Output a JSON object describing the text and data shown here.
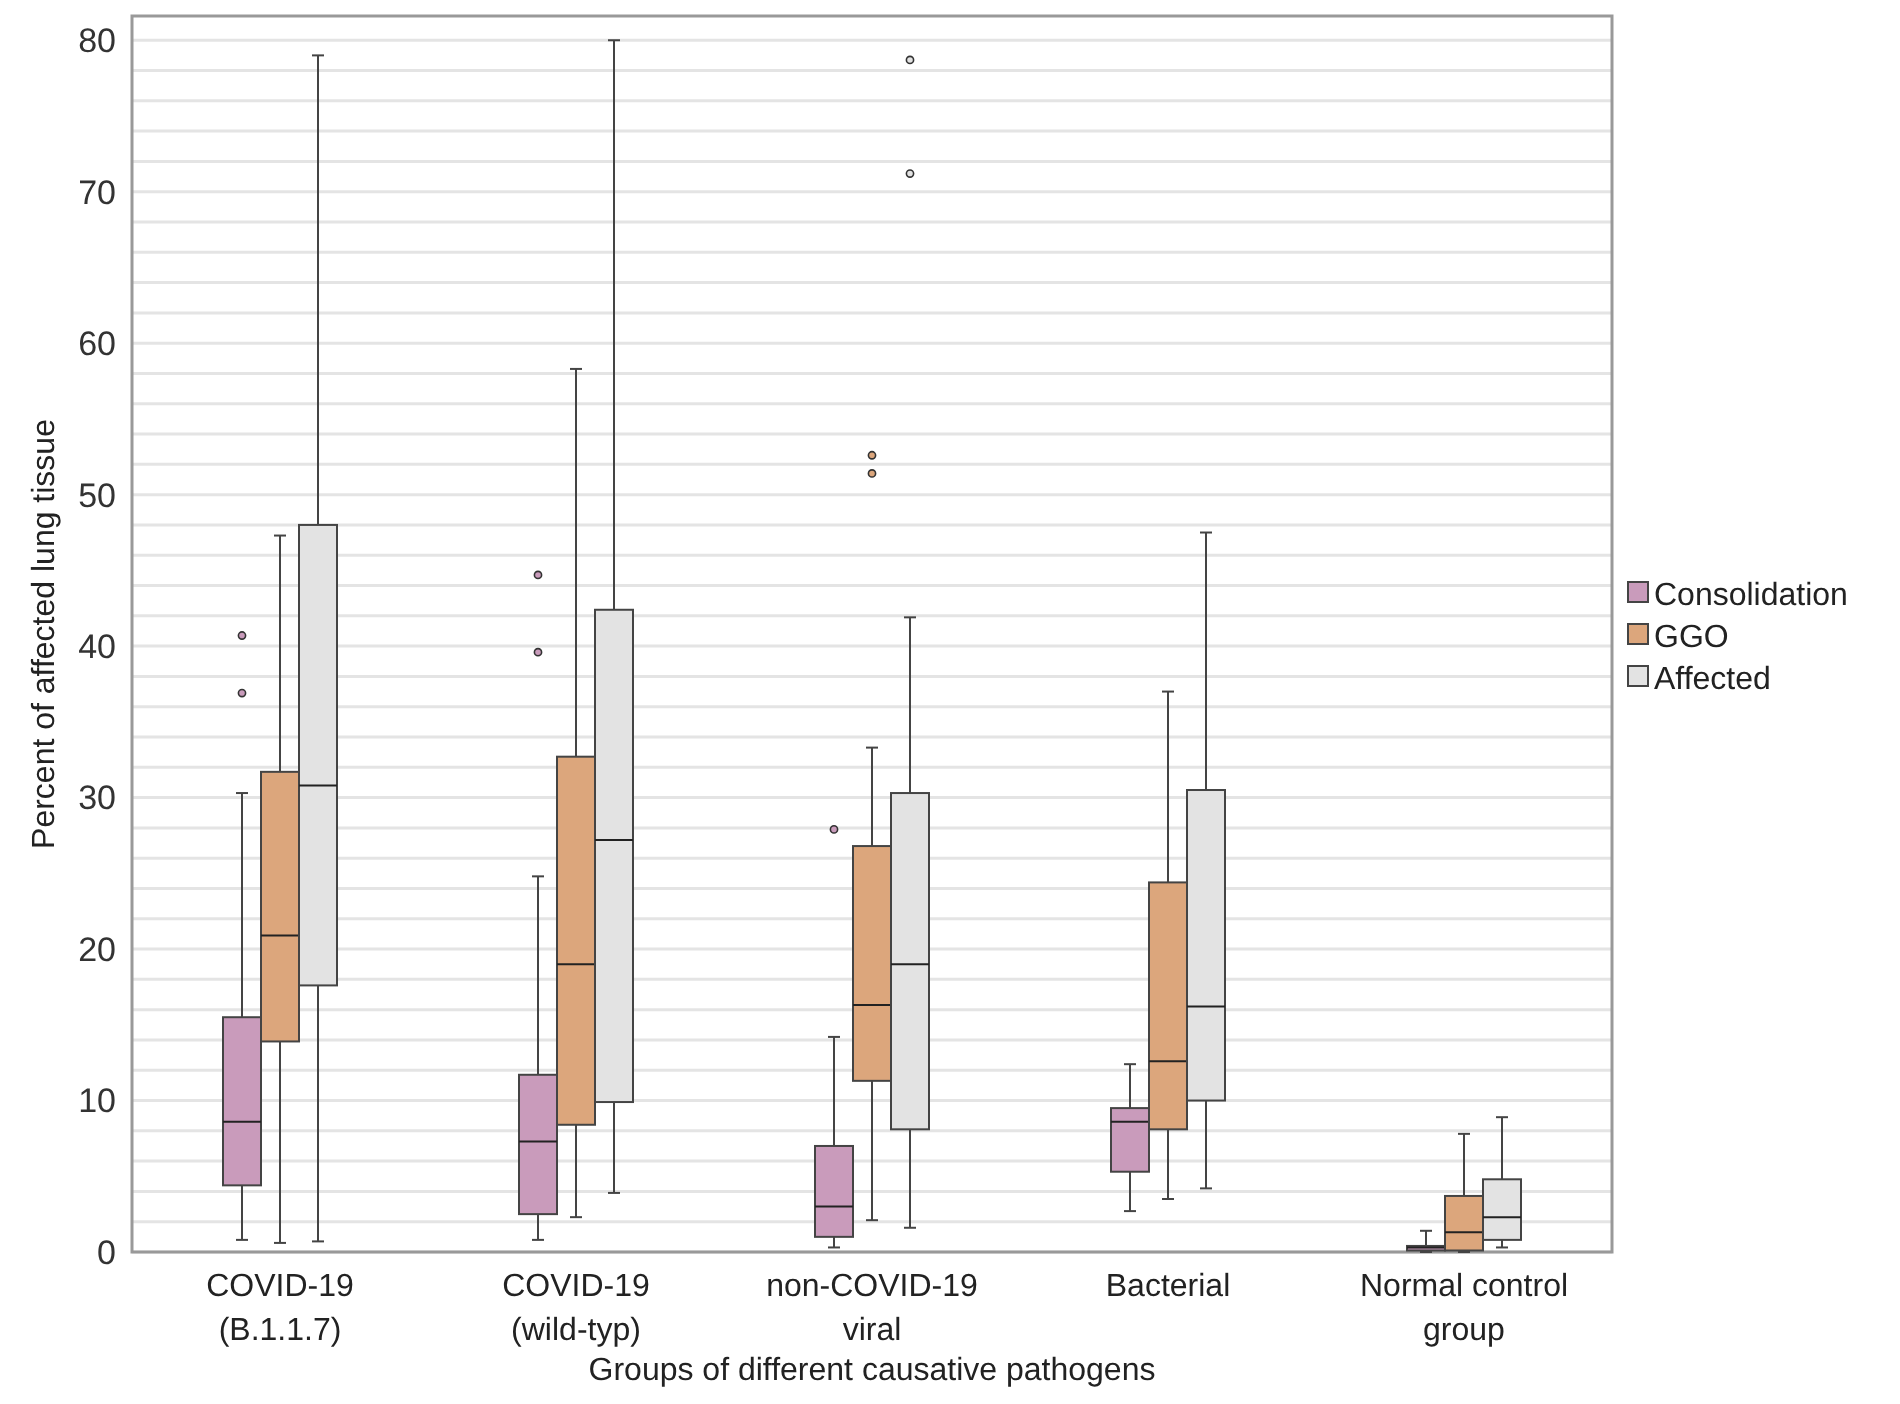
{
  "chart_data": {
    "type": "box",
    "xlabel": "Groups of different causative pathogens",
    "ylabel": "Percent of affected lung tissue",
    "categories": [
      "COVID-19\n(B.1.1.7)",
      "COVID-19\n(wild-typ)",
      "non-COVID-19\nviral",
      "Bacterial",
      "Normal control\ngroup"
    ],
    "ylim": [
      0,
      81.6
    ],
    "yticks": [
      0,
      {
        "value": 2,
        "label": null
      },
      {
        "value": 4,
        "label": null
      },
      {
        "value": 6,
        "label": null
      },
      {
        "value": 8,
        "label": null
      },
      10,
      {
        "value": 12,
        "label": null
      },
      {
        "value": 14,
        "label": null
      },
      {
        "value": 16,
        "label": null
      },
      {
        "value": 18,
        "label": null
      },
      20,
      {
        "value": 22,
        "label": null
      },
      {
        "value": 24,
        "label": null
      },
      {
        "value": 26,
        "label": null
      },
      {
        "value": 28,
        "label": null
      },
      30,
      {
        "value": 32,
        "label": null
      },
      {
        "value": 34,
        "label": null
      },
      {
        "value": 36,
        "label": null
      },
      {
        "value": 38,
        "label": null
      },
      40,
      {
        "value": 42,
        "label": null
      },
      {
        "value": 44,
        "label": null
      },
      {
        "value": 46,
        "label": null
      },
      {
        "value": 48,
        "label": null
      },
      50,
      {
        "value": 52,
        "label": null
      },
      {
        "value": 54,
        "label": null
      },
      {
        "value": 56,
        "label": null
      },
      {
        "value": 58,
        "label": null
      },
      60,
      {
        "value": 62,
        "label": null
      },
      {
        "value": 64,
        "label": null
      },
      {
        "value": 66,
        "label": null
      },
      {
        "value": 68,
        "label": null
      },
      70,
      {
        "value": 72,
        "label": null
      },
      {
        "value": 74,
        "label": null
      },
      {
        "value": 76,
        "label": null
      },
      {
        "value": 78,
        "label": null
      },
      80
    ],
    "grid": "y",
    "legend": "right",
    "series": [
      {
        "name": "Consolidation",
        "color": "#c99bbb",
        "boxes": [
          {
            "low": 0.8,
            "q1": 4.4,
            "median": 8.6,
            "q3": 15.5,
            "high": 30.3,
            "outliers": [
              40.7,
              36.9
            ]
          },
          {
            "low": 0.8,
            "q1": 2.5,
            "median": 7.3,
            "q3": 11.7,
            "high": 24.8,
            "outliers": [
              44.7,
              39.6
            ]
          },
          {
            "low": 0.3,
            "q1": 1.0,
            "median": 3.0,
            "q3": 7.0,
            "high": 14.2,
            "outliers": [
              27.9
            ]
          },
          {
            "low": 2.7,
            "q1": 5.3,
            "median": 8.6,
            "q3": 9.5,
            "high": 12.4
          },
          {
            "low": 0,
            "q1": 0.1,
            "median": 0.3,
            "q3": 0.4,
            "high": 1.4
          }
        ]
      },
      {
        "name": "GGO",
        "color": "#dca67c",
        "boxes": [
          {
            "low": 0.6,
            "q1": 13.9,
            "median": 20.9,
            "q3": 31.7,
            "high": 47.3
          },
          {
            "low": 2.3,
            "q1": 8.4,
            "median": 19.0,
            "q3": 32.7,
            "high": 58.3
          },
          {
            "low": 2.1,
            "q1": 11.3,
            "median": 16.3,
            "q3": 26.8,
            "high": 33.3,
            "outliers": [
              52.6,
              51.4
            ]
          },
          {
            "low": 3.5,
            "q1": 8.1,
            "median": 12.6,
            "q3": 24.4,
            "high": 37.0
          },
          {
            "low": 0,
            "q1": 0.1,
            "median": 1.3,
            "q3": 3.7,
            "high": 7.8
          }
        ]
      },
      {
        "name": "Affected",
        "color": "#e3e3e3",
        "boxes": [
          {
            "low": 0.7,
            "q1": 17.6,
            "median": 30.8,
            "q3": 48.0,
            "high": 79.0
          },
          {
            "low": 3.9,
            "q1": 9.9,
            "median": 27.2,
            "q3": 42.4,
            "high": 80.0
          },
          {
            "low": 1.6,
            "q1": 8.1,
            "median": 19.0,
            "q3": 30.3,
            "high": 41.9,
            "outliers": [
              78.7,
              71.2
            ]
          },
          {
            "low": 4.2,
            "q1": 10.0,
            "median": 16.2,
            "q3": 30.5,
            "high": 47.5
          },
          {
            "low": 0.3,
            "q1": 0.8,
            "median": 2.3,
            "q3": 4.8,
            "high": 8.9
          }
        ]
      }
    ]
  }
}
